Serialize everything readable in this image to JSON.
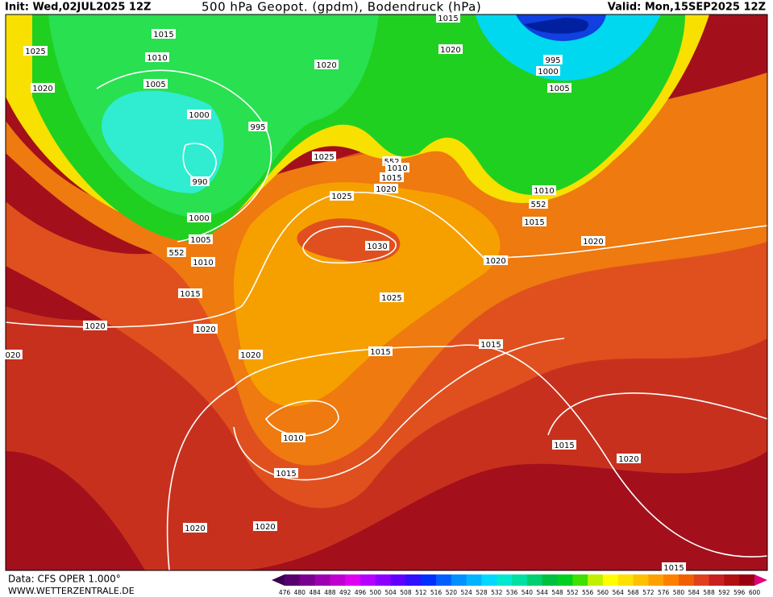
{
  "header": {
    "init": "Init: Wed,02JUL2025 12Z",
    "title": "500 hPa Geopot. (gpdm), Bodendruck (hPa)",
    "valid": "Valid: Mon,15SEP2025 12Z"
  },
  "isobar_labels": [
    "1015",
    "1025",
    "1010",
    "1020",
    "1005",
    "1000",
    "995",
    "990",
    "1000",
    "1005",
    "552",
    "1010",
    "1015",
    "1020",
    "1020",
    "020",
    "1020",
    "1025",
    "1025",
    "552",
    "1010",
    "1015",
    "1020",
    "1030",
    "1025",
    "1015",
    "1010",
    "1015",
    "1020",
    "1020",
    "1020",
    "1015",
    "1020",
    "995",
    "1000",
    "1005",
    "1010",
    "552",
    "1015",
    "1020",
    "1020",
    "1015",
    "1015",
    "1020",
    "1015"
  ],
  "scale": {
    "labels": [
      476,
      480,
      484,
      488,
      492,
      496,
      500,
      504,
      508,
      512,
      516,
      520,
      524,
      528,
      532,
      536,
      540,
      544,
      548,
      552,
      556,
      560,
      564,
      568,
      572,
      576,
      580,
      584,
      588,
      592,
      596,
      600
    ],
    "colors": [
      "#3c0050",
      "#58006e",
      "#7a0090",
      "#9c00b0",
      "#c000d0",
      "#e000f0",
      "#b400ff",
      "#8c00ff",
      "#6000ff",
      "#3010ff",
      "#0030ff",
      "#0060ff",
      "#0090ff",
      "#00b4ff",
      "#00d8ff",
      "#00e8d0",
      "#00e0a0",
      "#00d070",
      "#00c040",
      "#00d020",
      "#40e000",
      "#c0f000",
      "#ffff00",
      "#ffe000",
      "#ffc000",
      "#ffa000",
      "#ff8000",
      "#f06000",
      "#e04020",
      "#c82020",
      "#b01010",
      "#980010",
      "#e0007c"
    ]
  },
  "footer": {
    "source": "Data: CFS OPER 1.000°",
    "site": "WWW.WETTERZENTRALE.DE"
  }
}
